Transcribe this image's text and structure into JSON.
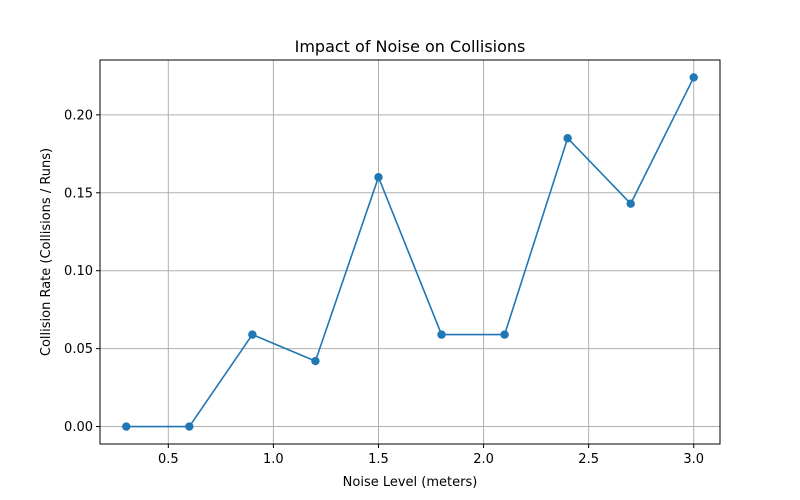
{
  "chart_data": {
    "type": "line",
    "title": "Impact of Noise on Collisions",
    "xlabel": "Noise Level (meters)",
    "ylabel": "Collision Rate (Collisions / Runs)",
    "xlim": [
      0.175,
      3.125
    ],
    "ylim": [
      -0.0112,
      0.2352
    ],
    "x_ticks": [
      0.5,
      1.0,
      1.5,
      2.0,
      2.5,
      3.0
    ],
    "x_tick_labels": [
      "0.5",
      "1.0",
      "1.5",
      "2.0",
      "2.5",
      "3.0"
    ],
    "y_ticks": [
      0.0,
      0.05,
      0.1,
      0.15,
      0.2
    ],
    "y_tick_labels": [
      "0.00",
      "0.05",
      "0.10",
      "0.15",
      "0.20"
    ],
    "grid": true,
    "series": [
      {
        "x": [
          0.3,
          0.6,
          0.9,
          1.2,
          1.5,
          1.8,
          2.1,
          2.4,
          2.7,
          3.0
        ],
        "values": [
          0.0,
          0.0,
          0.059,
          0.042,
          0.16,
          0.059,
          0.059,
          0.185,
          0.143,
          0.224
        ],
        "color": "#1f77b4",
        "marker": "circle"
      }
    ]
  }
}
